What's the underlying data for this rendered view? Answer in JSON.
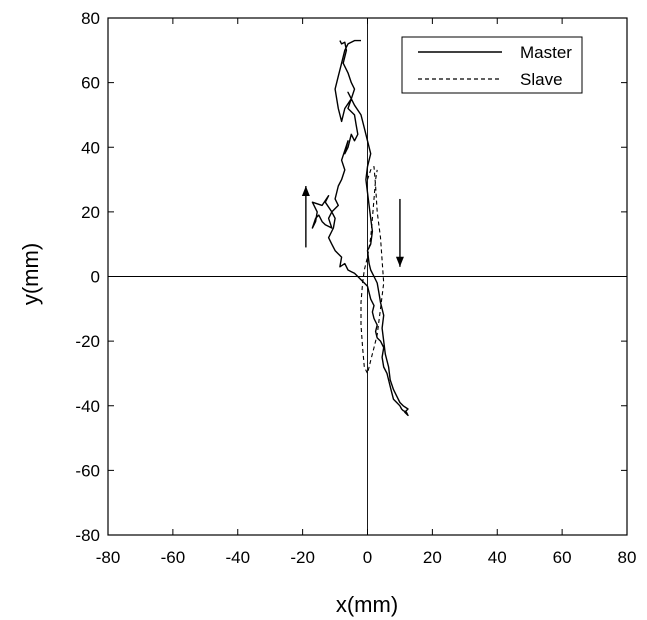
{
  "chart_data": {
    "type": "line",
    "title": "",
    "xlabel": "x(mm)",
    "ylabel": "y(mm)",
    "xlim": [
      -80,
      80
    ],
    "ylim": [
      -80,
      80
    ],
    "xticks": [
      -80,
      -60,
      -40,
      -20,
      0,
      20,
      40,
      60,
      80
    ],
    "yticks": [
      -80,
      -60,
      -40,
      -20,
      0,
      20,
      40,
      60,
      80
    ],
    "grid": false,
    "zero_lines": true,
    "legend_position": "top-right",
    "series": [
      {
        "name": "Master",
        "style": "solid",
        "color": "#000000",
        "x": [
          -8.5,
          -8,
          -7,
          -6.5,
          -7.5,
          -6,
          -5,
          -4,
          -5,
          -6,
          -4,
          -3.5,
          -3,
          -4,
          -5,
          -6,
          -7,
          -6,
          -8,
          -7,
          -8,
          -9,
          -9.5,
          -10,
          -9,
          -11,
          -12,
          -11,
          -13,
          -14,
          -15,
          -16,
          -17,
          -16,
          -15.5,
          -17,
          -14,
          -12,
          -13,
          -11,
          -10,
          -10.5,
          -12,
          -11,
          -10,
          -9,
          -8,
          -8.5,
          -7,
          -6,
          -5,
          -4,
          -3,
          -2,
          -1,
          0,
          0.5,
          1,
          2,
          1.5,
          2,
          3,
          2.5,
          3,
          4,
          5,
          4.5,
          5,
          6,
          6.5,
          7,
          7.5,
          8,
          9,
          10,
          10.5,
          11,
          12,
          12.5,
          11.5,
          12.5,
          11,
          10,
          9,
          8,
          7,
          6.5,
          5.5,
          5,
          4.5,
          5,
          4,
          3.5,
          3,
          2,
          1,
          0.5,
          0,
          1,
          1.5,
          1,
          0.5,
          0,
          -0.5,
          0,
          1,
          0,
          -1,
          -2,
          -4,
          -5,
          -6,
          -5,
          -7,
          -8,
          -9,
          -10,
          -9,
          -8,
          -7,
          -6,
          -4,
          -3,
          -2
        ],
        "y": [
          73,
          72,
          72.5,
          70,
          66,
          63,
          60,
          58,
          55,
          52,
          50,
          47,
          44,
          42,
          44,
          40,
          38,
          42,
          36,
          33,
          30,
          28,
          26,
          24,
          22,
          20,
          18,
          15,
          16,
          17,
          19,
          18,
          15,
          17,
          20,
          23,
          22,
          25,
          23,
          20,
          18,
          15,
          12,
          10,
          8,
          7,
          6,
          3,
          4,
          2,
          1.5,
          1,
          0,
          -1,
          -2,
          -3,
          -5,
          -7,
          -9,
          -11,
          -13,
          -15,
          -17,
          -19,
          -20,
          -22,
          -25,
          -28,
          -30,
          -32,
          -34,
          -36,
          -38,
          -39,
          -40,
          -41,
          -41.5,
          -42,
          -43,
          -42,
          -41,
          -40,
          -39,
          -37,
          -35,
          -32,
          -28,
          -24,
          -20,
          -16,
          -12,
          -8,
          -5,
          -2,
          0,
          2,
          4,
          8,
          10,
          14,
          18,
          22,
          26,
          30,
          34,
          38,
          42,
          46,
          50,
          53,
          55,
          57,
          55,
          52,
          48,
          52,
          58,
          62,
          66,
          70,
          72,
          73,
          73,
          73
        ],
        "arrow": {
          "x": -19,
          "y_from": 9,
          "y_to": 28
        }
      },
      {
        "name": "Slave",
        "style": "dashed",
        "color": "#000000",
        "x": [
          0,
          1,
          2,
          2.5,
          3,
          4,
          4.5,
          5,
          4,
          3,
          2,
          1,
          0,
          -1,
          -1.5,
          -2,
          -2,
          -1.5,
          -1,
          0,
          1,
          1.5,
          2,
          2.5,
          3
        ],
        "y": [
          30,
          33,
          34,
          28,
          20,
          12,
          5,
          -2,
          -10,
          -18,
          -22,
          -26,
          -30,
          -28,
          -22,
          -15,
          -8,
          -2,
          2,
          6,
          12,
          18,
          24,
          30,
          33
        ],
        "arrow": {
          "x": 10,
          "y_from": 24,
          "y_to": 3
        }
      }
    ]
  }
}
